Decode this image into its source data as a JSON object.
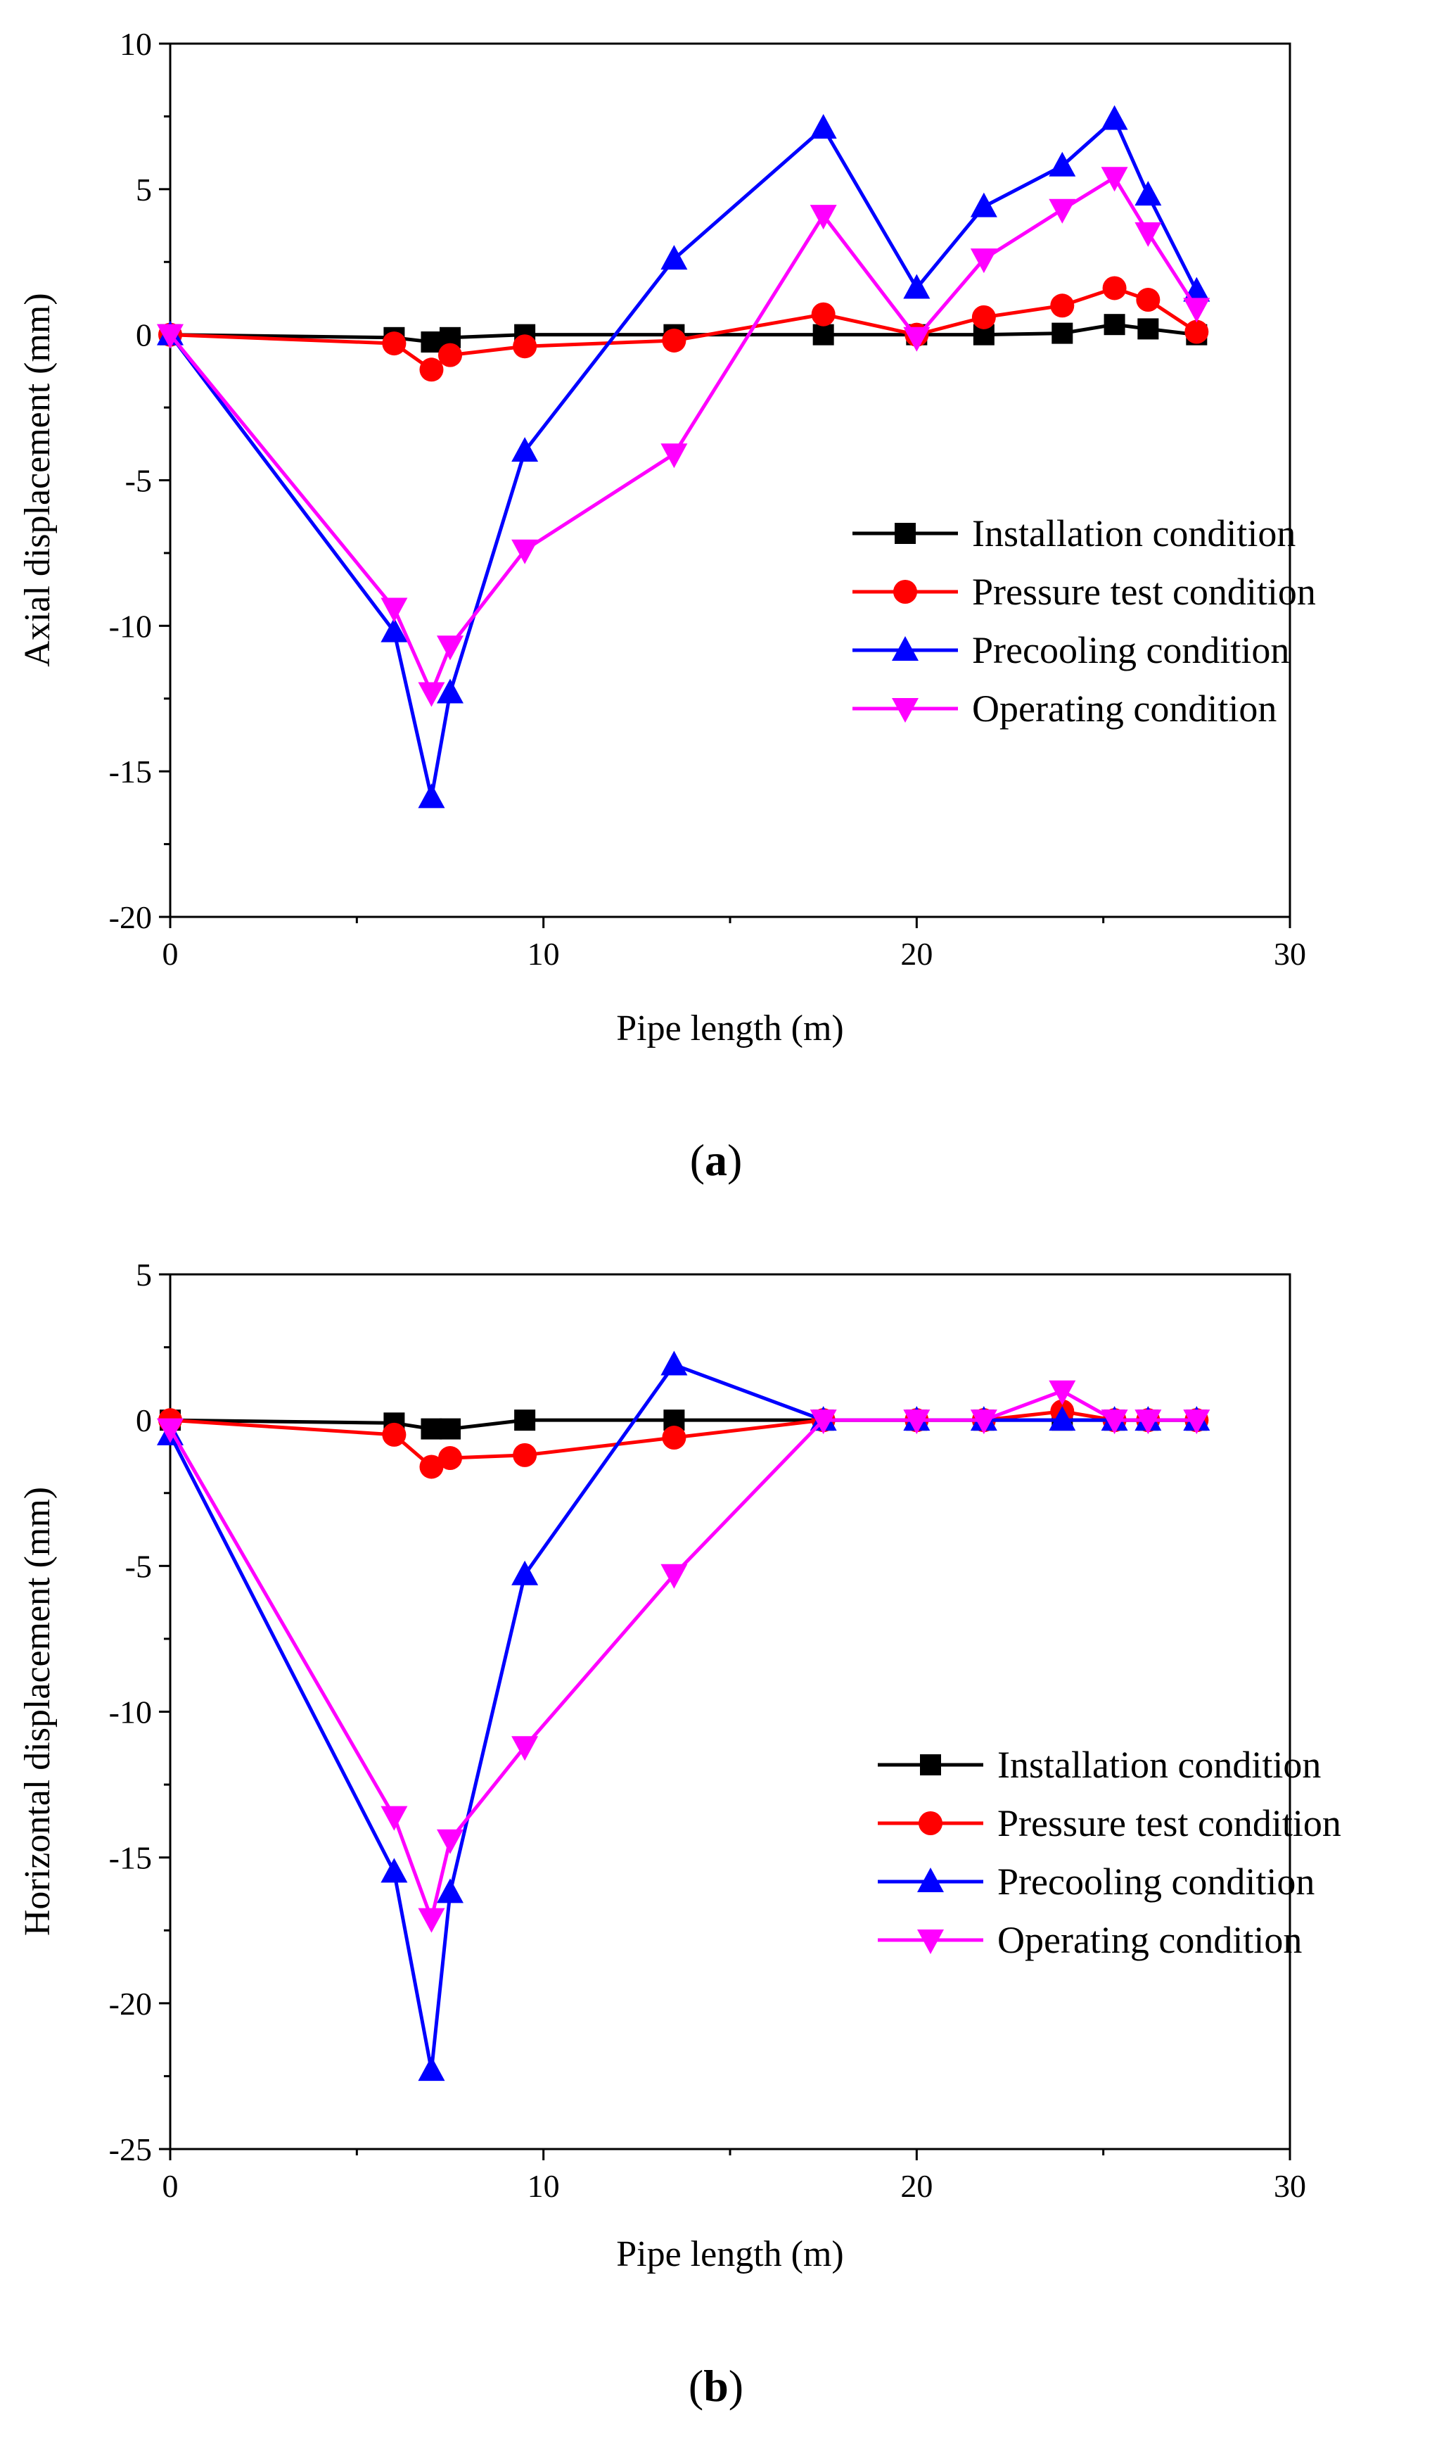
{
  "figure": {
    "panel_labels": [
      {
        "open": "(",
        "letter": "a",
        "close": ")"
      },
      {
        "open": "(",
        "letter": "b",
        "close": ")"
      }
    ]
  },
  "chart_data": [
    {
      "type": "line",
      "title": "",
      "xlabel": "Pipe length (m)",
      "ylabel": "Axial displacement (mm)",
      "xlim": [
        0,
        30
      ],
      "ylim": [
        -20,
        10
      ],
      "xticks": [
        0,
        10,
        20,
        30
      ],
      "yticks": [
        -20,
        -15,
        -10,
        -5,
        0,
        5,
        10
      ],
      "legend_position": "right",
      "x": [
        0,
        6,
        7,
        7.5,
        9.5,
        13.5,
        17.5,
        20,
        21.8,
        23.9,
        25.3,
        26.2,
        27.5
      ],
      "series": [
        {
          "name": "Installation condition",
          "color": "#000000",
          "marker": "square",
          "values": [
            0,
            -0.1,
            -0.25,
            -0.1,
            0,
            0,
            0,
            0,
            0,
            0.05,
            0.35,
            0.2,
            0
          ]
        },
        {
          "name": "Pressure test condition",
          "color": "#ff0000",
          "marker": "circle",
          "values": [
            0,
            -0.3,
            -1.2,
            -0.7,
            -0.4,
            -0.2,
            0.7,
            0,
            0.6,
            1.0,
            1.6,
            1.2,
            0.1
          ]
        },
        {
          "name": "Precooling condition",
          "color": "#0000ff",
          "marker": "triangle-up",
          "values": [
            0,
            -10.2,
            -15.9,
            -12.3,
            -4.0,
            2.6,
            7.1,
            1.6,
            4.4,
            5.8,
            7.4,
            4.8,
            1.5
          ]
        },
        {
          "name": "Operating condition",
          "color": "#ff00ff",
          "marker": "triangle-down",
          "values": [
            0,
            -9.4,
            -12.3,
            -10.7,
            -7.4,
            -4.1,
            4.1,
            -0.1,
            2.6,
            4.3,
            5.4,
            3.5,
            0.9
          ]
        }
      ]
    },
    {
      "type": "line",
      "title": "",
      "xlabel": "Pipe length (m)",
      "ylabel": "Horizontal displacement (mm)",
      "xlim": [
        0,
        30
      ],
      "ylim": [
        -25,
        5
      ],
      "xticks": [
        0,
        10,
        20,
        30
      ],
      "yticks": [
        -25,
        -20,
        -15,
        -10,
        -5,
        0,
        5
      ],
      "legend_position": "right",
      "x": [
        0,
        6,
        7,
        7.5,
        9.5,
        13.5,
        17.5,
        20,
        21.8,
        23.9,
        25.3,
        26.2,
        27.5
      ],
      "series": [
        {
          "name": "Installation condition",
          "color": "#000000",
          "marker": "square",
          "values": [
            0,
            -0.1,
            -0.3,
            -0.3,
            0,
            0,
            0,
            0,
            0,
            0,
            0,
            0,
            0
          ]
        },
        {
          "name": "Pressure test condition",
          "color": "#ff0000",
          "marker": "circle",
          "values": [
            0,
            -0.5,
            -1.6,
            -1.3,
            -1.2,
            -0.6,
            0,
            0,
            0,
            0.3,
            0,
            0,
            0
          ]
        },
        {
          "name": "Precooling condition",
          "color": "#0000ff",
          "marker": "triangle-up",
          "values": [
            -0.5,
            -15.5,
            -22.3,
            -16.2,
            -5.3,
            1.9,
            0,
            0,
            0,
            0,
            0,
            0,
            0
          ]
        },
        {
          "name": "Operating condition",
          "color": "#ff00ff",
          "marker": "triangle-down",
          "values": [
            -0.3,
            -13.6,
            -17.1,
            -14.4,
            -11.2,
            -5.3,
            0,
            0,
            0,
            1.0,
            0,
            0,
            0
          ]
        }
      ]
    }
  ]
}
